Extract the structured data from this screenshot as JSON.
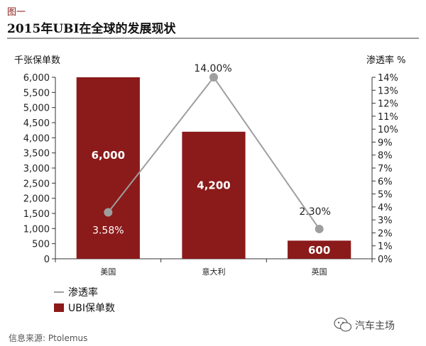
{
  "figure_label": "图一",
  "title": "2015年UBI在全球的发展现状",
  "source": "信息来源: Ptolemus",
  "watermark": "汽车主场",
  "colors": {
    "bar": "#8b1a1a",
    "line": "#9e9e9e",
    "axis": "#333333",
    "bar_label": "#ffffff"
  },
  "chart_data": {
    "type": "bar",
    "categories": [
      "美国",
      "意大利",
      "英国"
    ],
    "series": [
      {
        "name": "UBI保单数",
        "type": "bar",
        "axis": "left",
        "values": [
          6000,
          4200,
          600
        ],
        "labels": [
          "6,000",
          "4,200",
          "600"
        ]
      },
      {
        "name": "渗透率",
        "type": "line",
        "axis": "right",
        "values": [
          3.58,
          14.0,
          2.3
        ],
        "labels": [
          "3.58%",
          "14.00%",
          "2.30%"
        ]
      }
    ],
    "ylabel": "千张保单数",
    "ylim": [
      0,
      6000
    ],
    "yticks": [
      "0",
      "500",
      "1,000",
      "1,500",
      "2,000",
      "2,500",
      "3,000",
      "3,500",
      "4,000",
      "4,500",
      "5,000",
      "5,500",
      "6,000"
    ],
    "y2label": "渗透率 %",
    "y2lim": [
      0,
      14
    ],
    "y2ticks": [
      "0%",
      "1%",
      "2%",
      "3%",
      "4%",
      "5%",
      "6%",
      "7%",
      "8%",
      "9%",
      "10%",
      "11%",
      "12%",
      "13%",
      "14%"
    ],
    "legend": {
      "position": "bottom-left",
      "entries": [
        "渗透率",
        "UBI保单数"
      ]
    },
    "grid": false
  }
}
